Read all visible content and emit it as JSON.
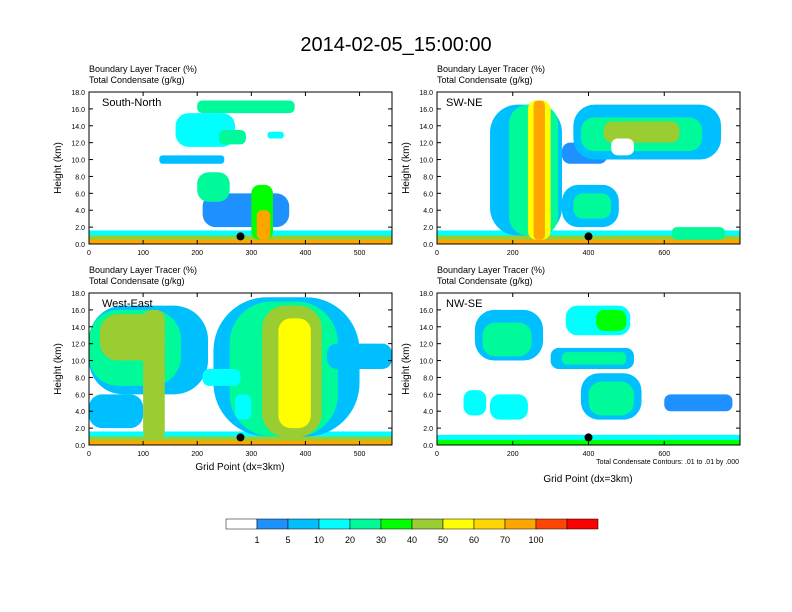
{
  "chart_data": {
    "type": "heatmap",
    "title": "2014-02-05_15:00:00",
    "colorbar": {
      "levels": [
        "1",
        "5",
        "10",
        "20",
        "30",
        "40",
        "50",
        "60",
        "70",
        "100"
      ],
      "colors": [
        "#ffffff",
        "#1e90ff",
        "#00bfff",
        "#00ffff",
        "#00fa9a",
        "#00ff00",
        "#9acd32",
        "#ffff00",
        "#ffd700",
        "#ffa500",
        "#ff4500",
        "#ff0000"
      ]
    },
    "panels": [
      {
        "id": "south-north",
        "label": "South-North",
        "title_line1": "Boundary Layer Tracer   (%)",
        "title_line2": "Total Condensate   (g/kg)",
        "ylabel": "Height (km)",
        "xlabel": "",
        "xlim": [
          0,
          560
        ],
        "ylim": [
          0,
          18
        ],
        "xticks": [
          "0",
          "100",
          "200",
          "300",
          "400",
          "500"
        ],
        "xtick_values": [
          0,
          100,
          200,
          300,
          400,
          500
        ],
        "yticks": [
          "0.0",
          "2.0",
          "4.0",
          "6.0",
          "8.0",
          "10.0",
          "12.0",
          "14.0",
          "16.0",
          "18.0"
        ],
        "ytick_values": [
          0,
          2,
          4,
          6,
          8,
          10,
          12,
          14,
          16,
          18
        ],
        "marker_x": 280,
        "footnote": "",
        "blobs": [
          {
            "x": [
              0,
              560
            ],
            "y": [
              0,
              1.6
            ],
            "level": 3
          },
          {
            "x": [
              0,
              560
            ],
            "y": [
              0,
              1.0
            ],
            "level": 6
          },
          {
            "x": [
              0,
              560
            ],
            "y": [
              0,
              0.5
            ],
            "level": 9
          },
          {
            "x": [
              210,
              370
            ],
            "y": [
              2.0,
              6.0
            ],
            "level": 1
          },
          {
            "x": [
              200,
              260
            ],
            "y": [
              5.0,
              8.5
            ],
            "level": 4
          },
          {
            "x": [
              300,
              340
            ],
            "y": [
              0.5,
              7.0
            ],
            "level": 5
          },
          {
            "x": [
              310,
              335
            ],
            "y": [
              0.5,
              4.0
            ],
            "level": 9
          },
          {
            "x": [
              130,
              250
            ],
            "y": [
              9.5,
              10.5
            ],
            "level": 2
          },
          {
            "x": [
              160,
              270
            ],
            "y": [
              11.5,
              15.5
            ],
            "level": 3
          },
          {
            "x": [
              200,
              380
            ],
            "y": [
              15.5,
              17.0
            ],
            "level": 4
          },
          {
            "x": [
              240,
              290
            ],
            "y": [
              11.8,
              13.5
            ],
            "level": 4
          },
          {
            "x": [
              330,
              360
            ],
            "y": [
              12.5,
              13.3
            ],
            "level": 3
          }
        ]
      },
      {
        "id": "sw-ne",
        "label": "SW-NE",
        "title_line1": "Boundary Layer Tracer   (%)",
        "title_line2": "Total Condensate   (g/kg)",
        "ylabel": "Height (km)",
        "xlabel": "",
        "xlim": [
          0,
          800
        ],
        "ylim": [
          0,
          18
        ],
        "xticks": [
          "0",
          "200",
          "400",
          "600"
        ],
        "xtick_values": [
          0,
          200,
          400,
          600
        ],
        "yticks": [
          "0.0",
          "2.0",
          "4.0",
          "6.0",
          "8.0",
          "10.0",
          "12.0",
          "14.0",
          "16.0",
          "18.0"
        ],
        "ytick_values": [
          0,
          2,
          4,
          6,
          8,
          10,
          12,
          14,
          16,
          18
        ],
        "marker_x": 400,
        "footnote": "",
        "blobs": [
          {
            "x": [
              0,
              800
            ],
            "y": [
              0,
              1.6
            ],
            "level": 3
          },
          {
            "x": [
              0,
              800
            ],
            "y": [
              0,
              1.0
            ],
            "level": 6
          },
          {
            "x": [
              0,
              800
            ],
            "y": [
              0,
              0.5
            ],
            "level": 9
          },
          {
            "x": [
              140,
              330
            ],
            "y": [
              1.0,
              16.5
            ],
            "level": 2
          },
          {
            "x": [
              190,
              320
            ],
            "y": [
              1.0,
              16.5
            ],
            "level": 4
          },
          {
            "x": [
              240,
              300
            ],
            "y": [
              0.5,
              17.0
            ],
            "level": 7
          },
          {
            "x": [
              255,
              285
            ],
            "y": [
              0.5,
              17.0
            ],
            "level": 9
          },
          {
            "x": [
              330,
              450
            ],
            "y": [
              9.5,
              12.0
            ],
            "level": 1
          },
          {
            "x": [
              360,
              750
            ],
            "y": [
              10.0,
              16.5
            ],
            "level": 2
          },
          {
            "x": [
              380,
              700
            ],
            "y": [
              11.0,
              15.0
            ],
            "level": 4
          },
          {
            "x": [
              440,
              640
            ],
            "y": [
              12.0,
              14.5
            ],
            "level": 6
          },
          {
            "x": [
              460,
              520
            ],
            "y": [
              10.5,
              12.5
            ],
            "level": 0
          },
          {
            "x": [
              330,
              480
            ],
            "y": [
              2.0,
              7.0
            ],
            "level": 2
          },
          {
            "x": [
              360,
              460
            ],
            "y": [
              3.0,
              6.0
            ],
            "level": 4
          },
          {
            "x": [
              620,
              760
            ],
            "y": [
              0.5,
              2.0
            ],
            "level": 4
          }
        ]
      },
      {
        "id": "west-east",
        "label": "West-East",
        "title_line1": "Boundary Layer Tracer   (%)",
        "title_line2": "Total Condensate   (g/kg)",
        "ylabel": "Height (km)",
        "xlabel": "Grid Point (dx=3km)",
        "xlim": [
          0,
          560
        ],
        "ylim": [
          0,
          18
        ],
        "xticks": [
          "0",
          "100",
          "200",
          "300",
          "400",
          "500"
        ],
        "xtick_values": [
          0,
          100,
          200,
          300,
          400,
          500
        ],
        "yticks": [
          "0.0",
          "2.0",
          "4.0",
          "6.0",
          "8.0",
          "10.0",
          "12.0",
          "14.0",
          "16.0",
          "18.0"
        ],
        "ytick_values": [
          0,
          2,
          4,
          6,
          8,
          10,
          12,
          14,
          16,
          18
        ],
        "marker_x": 280,
        "footnote": "",
        "blobs": [
          {
            "x": [
              0,
              560
            ],
            "y": [
              0,
              1.6
            ],
            "level": 3
          },
          {
            "x": [
              0,
              560
            ],
            "y": [
              0,
              1.0
            ],
            "level": 6
          },
          {
            "x": [
              0,
              560
            ],
            "y": [
              0,
              0.5
            ],
            "level": 9
          },
          {
            "x": [
              0,
              220
            ],
            "y": [
              6.0,
              16.5
            ],
            "level": 2
          },
          {
            "x": [
              0,
              170
            ],
            "y": [
              7.0,
              16.0
            ],
            "level": 4
          },
          {
            "x": [
              20,
              140
            ],
            "y": [
              10.0,
              15.5
            ],
            "level": 6
          },
          {
            "x": [
              100,
              140
            ],
            "y": [
              0.5,
              16.0
            ],
            "level": 6
          },
          {
            "x": [
              0,
              100
            ],
            "y": [
              2.0,
              6.0
            ],
            "level": 2
          },
          {
            "x": [
              230,
              500
            ],
            "y": [
              1.0,
              17.5
            ],
            "level": 2
          },
          {
            "x": [
              260,
              460
            ],
            "y": [
              1.0,
              17.0
            ],
            "level": 4
          },
          {
            "x": [
              320,
              430
            ],
            "y": [
              1.0,
              16.5
            ],
            "level": 6
          },
          {
            "x": [
              350,
              410
            ],
            "y": [
              2.0,
              15.0
            ],
            "level": 7
          },
          {
            "x": [
              440,
              560
            ],
            "y": [
              9.0,
              12.0
            ],
            "level": 2
          },
          {
            "x": [
              210,
              280
            ],
            "y": [
              7.0,
              9.0
            ],
            "level": 3
          },
          {
            "x": [
              270,
              300
            ],
            "y": [
              3.0,
              6.0
            ],
            "level": 3
          }
        ]
      },
      {
        "id": "nw-se",
        "label": "NW-SE",
        "title_line1": "Boundary Layer Tracer   (%)",
        "title_line2": "Total Condensate   (g/kg)",
        "ylabel": "Height (km)",
        "xlabel": "Grid Point (dx=3km)",
        "xlim": [
          0,
          800
        ],
        "ylim": [
          0,
          18
        ],
        "xticks": [
          "0",
          "200",
          "400",
          "600"
        ],
        "xtick_values": [
          0,
          200,
          400,
          600
        ],
        "yticks": [
          "0.0",
          "2.0",
          "4.0",
          "6.0",
          "8.0",
          "10.0",
          "12.0",
          "14.0",
          "16.0",
          "18.0"
        ],
        "ytick_values": [
          0,
          2,
          4,
          6,
          8,
          10,
          12,
          14,
          16,
          18
        ],
        "marker_x": 400,
        "footnote": "Total Condensate Contours: .01 to .01 by .000",
        "blobs": [
          {
            "x": [
              0,
              800
            ],
            "y": [
              0,
              1.2
            ],
            "level": 3
          },
          {
            "x": [
              0,
              800
            ],
            "y": [
              0,
              0.6
            ],
            "level": 5
          },
          {
            "x": [
              100,
              280
            ],
            "y": [
              10.0,
              16.0
            ],
            "level": 2
          },
          {
            "x": [
              120,
              250
            ],
            "y": [
              10.5,
              14.5
            ],
            "level": 4
          },
          {
            "x": [
              300,
              520
            ],
            "y": [
              9.0,
              11.5
            ],
            "level": 2
          },
          {
            "x": [
              330,
              500
            ],
            "y": [
              9.5,
              11.0
            ],
            "level": 4
          },
          {
            "x": [
              340,
              510
            ],
            "y": [
              13.0,
              16.5
            ],
            "level": 3
          },
          {
            "x": [
              420,
              500
            ],
            "y": [
              13.5,
              16.0
            ],
            "level": 5
          },
          {
            "x": [
              70,
              130
            ],
            "y": [
              3.5,
              6.5
            ],
            "level": 3
          },
          {
            "x": [
              140,
              240
            ],
            "y": [
              3.0,
              6.0
            ],
            "level": 3
          },
          {
            "x": [
              380,
              540
            ],
            "y": [
              3.0,
              8.5
            ],
            "level": 2
          },
          {
            "x": [
              400,
              520
            ],
            "y": [
              3.5,
              7.5
            ],
            "level": 4
          },
          {
            "x": [
              600,
              780
            ],
            "y": [
              4.0,
              6.0
            ],
            "level": 1
          }
        ]
      }
    ]
  }
}
